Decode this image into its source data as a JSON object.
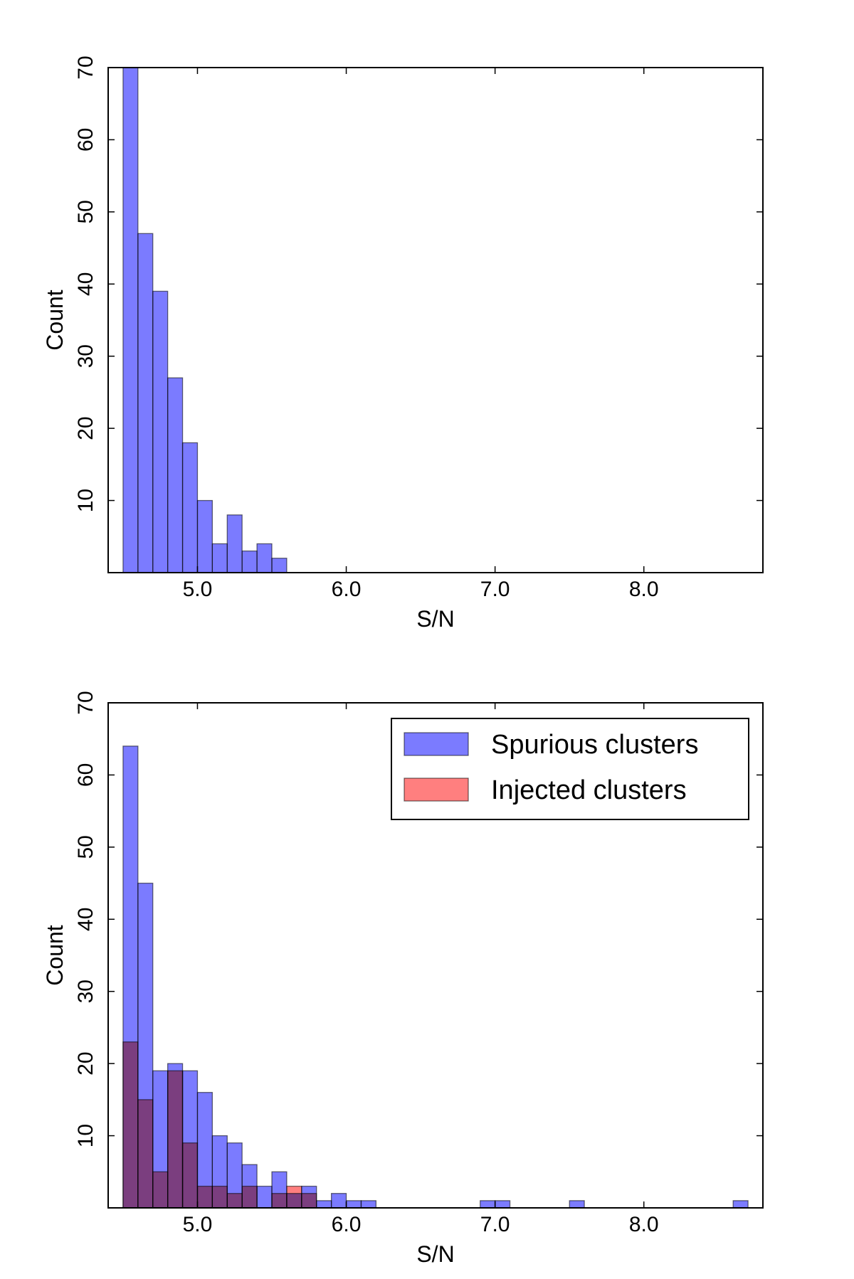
{
  "chart_data": [
    {
      "type": "bar",
      "xlabel": "S/N",
      "ylabel": "Count",
      "xlim": [
        4.4,
        8.8
      ],
      "ylim": [
        0,
        70
      ],
      "x_ticks": [
        5.0,
        6.0,
        7.0,
        8.0
      ],
      "x_tick_labels": [
        "5.0",
        "6.0",
        "7.0",
        "8.0"
      ],
      "y_ticks": [
        10,
        20,
        30,
        40,
        50,
        60,
        70
      ],
      "y_tick_labels": [
        "10",
        "20",
        "30",
        "40",
        "50",
        "60",
        "70"
      ],
      "bin_width": 0.1,
      "legend": null,
      "series": [
        {
          "color": "#7b7bff",
          "bin_starts": [
            4.5,
            4.6,
            4.7,
            4.8,
            4.9,
            5.0,
            5.1,
            5.2,
            5.3,
            5.4,
            5.5
          ],
          "values": [
            70,
            47,
            39,
            27,
            18,
            10,
            4,
            8,
            3,
            4,
            2
          ]
        }
      ]
    },
    {
      "type": "bar",
      "xlabel": "S/N",
      "ylabel": "Count",
      "xlim": [
        4.4,
        8.8
      ],
      "ylim": [
        0,
        70
      ],
      "x_ticks": [
        5.0,
        6.0,
        7.0,
        8.0
      ],
      "x_tick_labels": [
        "5.0",
        "6.0",
        "7.0",
        "8.0"
      ],
      "y_ticks": [
        10,
        20,
        30,
        40,
        50,
        60,
        70
      ],
      "y_tick_labels": [
        "10",
        "20",
        "30",
        "40",
        "50",
        "60",
        "70"
      ],
      "bin_width": 0.1,
      "legend": "top-right",
      "series": [
        {
          "name": "Spurious clusters",
          "color": "#7b7bff",
          "bin_starts": [
            4.5,
            4.6,
            4.7,
            4.8,
            4.9,
            5.0,
            5.1,
            5.2,
            5.3,
            5.4,
            5.5,
            5.6,
            5.7,
            5.8,
            5.9,
            6.0,
            6.1,
            6.9,
            7.0,
            7.5,
            8.6
          ],
          "values": [
            64,
            45,
            19,
            20,
            19,
            16,
            10,
            9,
            6,
            3,
            5,
            2,
            3,
            1,
            2,
            1,
            1,
            1,
            1,
            1,
            1
          ]
        },
        {
          "name": "Injected clusters",
          "color": "#ff7f7f",
          "bin_starts": [
            4.5,
            4.6,
            4.7,
            4.8,
            4.9,
            5.0,
            5.1,
            5.2,
            5.3,
            5.4,
            5.5,
            5.6,
            5.7
          ],
          "values": [
            23,
            15,
            5,
            19,
            9,
            3,
            3,
            2,
            3,
            0,
            2,
            3,
            2
          ]
        }
      ]
    }
  ]
}
